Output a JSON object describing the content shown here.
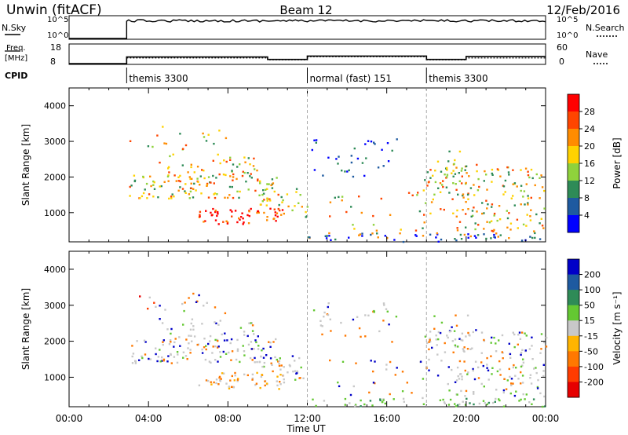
{
  "header": {
    "title_left": "Unwin (fitACF)",
    "title_center": "Beam 12",
    "title_right": "12/Feb/2016"
  },
  "params": {
    "nsky_label": "N.Sky",
    "nsky_ticks": [
      "10^5",
      "10^0"
    ],
    "nsearch_label": "N.Search",
    "nsearch_ticks": [
      "10^5",
      "10^0"
    ],
    "freq_label": "Freq.",
    "freq_unit": "[MHz]",
    "freq_ticks": [
      "18",
      "8"
    ],
    "nave_label": "Nave",
    "nave_ticks": [
      "60",
      "0"
    ],
    "cpid_label": "CPID",
    "cpid_segments": [
      {
        "start_hr": 2.9,
        "label": "themis 3300"
      },
      {
        "start_hr": 12.0,
        "label": "normal (fast) 151"
      },
      {
        "start_hr": 18.0,
        "label": "themis 3300"
      }
    ],
    "freq_series": [
      [
        2.9,
        11.5
      ],
      [
        10.0,
        11.5
      ],
      [
        10.0,
        10.2
      ],
      [
        12.0,
        10.2
      ],
      [
        12.0,
        12.0
      ],
      [
        18.0,
        12.0
      ],
      [
        18.0,
        10.2
      ],
      [
        20.0,
        10.2
      ],
      [
        20.0,
        11.8
      ],
      [
        24.0,
        11.8
      ]
    ],
    "nave_series": [
      [
        2.9,
        18
      ],
      [
        10.0,
        18
      ],
      [
        10.0,
        12
      ],
      [
        12.0,
        12
      ],
      [
        12.0,
        22
      ],
      [
        18.0,
        22
      ],
      [
        18.0,
        12
      ],
      [
        20.0,
        12
      ],
      [
        20.0,
        18
      ],
      [
        24.0,
        18
      ]
    ]
  },
  "chart_data": [
    {
      "type": "heatmap",
      "name": "power",
      "ylabel": "Slant Range [km]",
      "xlabel": "Time UT",
      "ylim": [
        180,
        4500
      ],
      "xlim_hr": [
        0,
        24
      ],
      "yticks": [
        1000,
        2000,
        3000,
        4000
      ],
      "xticks": [
        "00:00",
        "04:00",
        "08:00",
        "12:00",
        "16:00",
        "20:00",
        "00:00"
      ],
      "colorbar": {
        "label": "Power [dB]",
        "ticks": [
          "28",
          "24",
          "20",
          "16",
          "12",
          "8",
          "4"
        ],
        "colors": [
          "#ff0000",
          "#ff4500",
          "#ff8c00",
          "#ffd200",
          "#8fd23c",
          "#2e8b57",
          "#1e5aa0",
          "#0000ff"
        ]
      }
    },
    {
      "type": "heatmap",
      "name": "velocity",
      "ylabel": "Slant Range [km]",
      "xlabel": "Time UT",
      "ylim": [
        180,
        4500
      ],
      "xlim_hr": [
        0,
        24
      ],
      "yticks": [
        1000,
        2000,
        3000,
        4000
      ],
      "xticks": [
        "00:00",
        "04:00",
        "08:00",
        "12:00",
        "16:00",
        "20:00",
        "00:00"
      ],
      "colorbar": {
        "label": "Velocity [m s⁻¹]",
        "ticks": [
          "200",
          "100",
          "50",
          "15",
          "-15",
          "-50",
          "-100",
          "-200"
        ],
        "colors": [
          "#0000c8",
          "#1e5aa0",
          "#2e8b57",
          "#64c832",
          "#c8c8c8",
          "#ffb400",
          "#ff7800",
          "#ff3c00",
          "#e60000"
        ]
      }
    }
  ],
  "footer": {
    "time_label": "Time UT"
  }
}
